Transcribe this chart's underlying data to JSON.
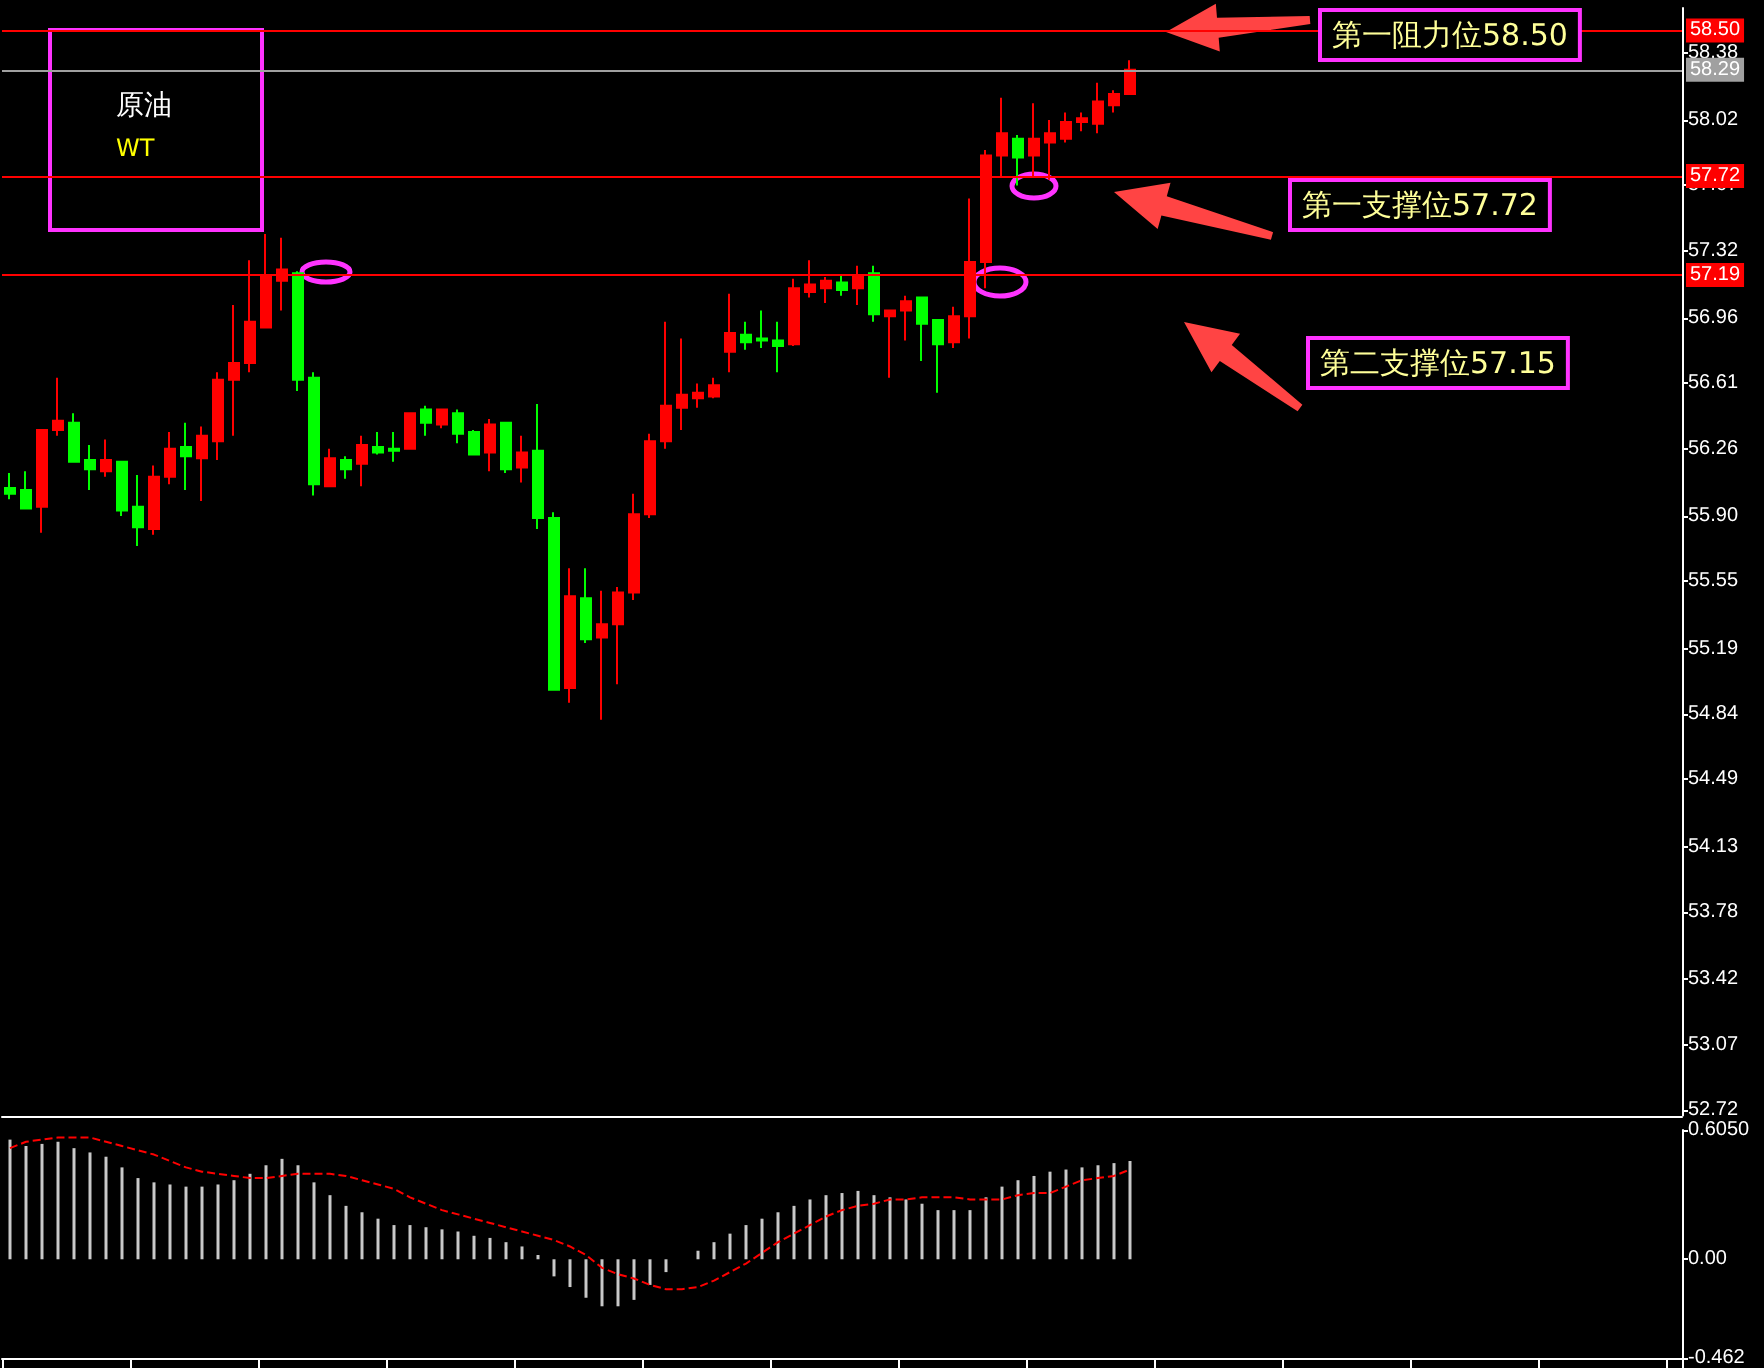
{
  "chart_data": [
    {
      "type": "candlestick",
      "categories": [
        null,
        null,
        null,
        null,
        null,
        null,
        null,
        null,
        null,
        null,
        null,
        null,
        null,
        null,
        null,
        null,
        null,
        null,
        null,
        null,
        null,
        null,
        null,
        null,
        null,
        null,
        null,
        null,
        null,
        null,
        null,
        null,
        null,
        null,
        null,
        null,
        null,
        null,
        null,
        null,
        null,
        null,
        null,
        null,
        null,
        null,
        null,
        null,
        null,
        null,
        null,
        null,
        null,
        null,
        null,
        null,
        null,
        null,
        null,
        null,
        null,
        null,
        null,
        null,
        null,
        null,
        null,
        null,
        null,
        null,
        null,
        null,
        null,
        null,
        null,
        null,
        null,
        null,
        null,
        null,
        null,
        null,
        null,
        null,
        null,
        null,
        null,
        null,
        null,
        null,
        null,
        null,
        null,
        null,
        null,
        null,
        null,
        null,
        null,
        null,
        null,
        null,
        null,
        null,
        null
      ],
      "ohlc": [
        [
          56.05,
          56.13,
          55.99,
          56.02
        ],
        [
          56.04,
          56.14,
          55.94,
          55.94
        ],
        [
          55.95,
          56.36,
          55.81,
          56.36
        ],
        [
          56.36,
          56.64,
          56.33,
          56.41
        ],
        [
          56.4,
          56.45,
          56.19,
          56.19
        ],
        [
          56.2,
          56.28,
          56.04,
          56.15
        ],
        [
          56.14,
          56.31,
          56.11,
          56.2
        ],
        [
          56.19,
          56.19,
          55.9,
          55.93
        ],
        [
          55.95,
          56.12,
          55.74,
          55.84
        ],
        [
          55.83,
          56.17,
          55.8,
          56.11
        ],
        [
          56.11,
          56.35,
          56.07,
          56.26
        ],
        [
          56.27,
          56.4,
          56.04,
          56.22
        ],
        [
          56.21,
          56.38,
          55.98,
          56.33
        ],
        [
          56.3,
          56.67,
          56.2,
          56.63
        ],
        [
          56.63,
          57.03,
          56.33,
          56.72
        ],
        [
          56.72,
          57.27,
          56.67,
          56.94
        ],
        [
          56.91,
          57.41,
          56.91,
          57.18
        ],
        [
          57.16,
          57.39,
          57.0,
          57.22
        ],
        [
          57.2,
          57.21,
          56.57,
          56.63
        ],
        [
          56.64,
          56.67,
          56.01,
          56.07
        ],
        [
          56.06,
          56.26,
          56.06,
          56.21
        ],
        [
          56.2,
          56.22,
          56.1,
          56.15
        ],
        [
          56.18,
          56.33,
          56.06,
          56.28
        ],
        [
          56.27,
          56.35,
          56.23,
          56.24
        ],
        [
          56.26,
          56.35,
          56.19,
          56.25
        ],
        [
          56.26,
          56.45,
          56.26,
          56.45
        ],
        [
          56.47,
          56.49,
          56.33,
          56.4
        ],
        [
          56.39,
          56.47,
          56.37,
          56.47
        ],
        [
          56.45,
          56.47,
          56.29,
          56.34
        ],
        [
          56.35,
          56.36,
          56.23,
          56.23
        ],
        [
          56.24,
          56.42,
          56.14,
          56.39
        ],
        [
          56.4,
          56.4,
          56.13,
          56.15
        ],
        [
          56.16,
          56.33,
          56.08,
          56.24
        ],
        [
          56.25,
          56.5,
          55.83,
          55.89
        ],
        [
          55.89,
          55.92,
          54.97,
          54.97
        ],
        [
          54.98,
          55.62,
          54.9,
          55.47
        ],
        [
          55.46,
          55.62,
          55.22,
          55.24
        ],
        [
          55.25,
          55.5,
          54.81,
          55.32
        ],
        [
          55.32,
          55.52,
          55.0,
          55.49
        ],
        [
          55.49,
          56.02,
          55.45,
          55.91
        ],
        [
          55.91,
          56.34,
          55.89,
          56.3
        ],
        [
          56.3,
          56.94,
          56.26,
          56.49
        ],
        [
          56.48,
          56.85,
          56.36,
          56.55
        ],
        [
          56.53,
          56.61,
          56.48,
          56.56
        ],
        [
          56.54,
          56.64,
          56.53,
          56.6
        ],
        [
          56.78,
          57.09,
          56.67,
          56.88
        ],
        [
          56.87,
          56.94,
          56.79,
          56.83
        ],
        [
          56.85,
          57.0,
          56.8,
          56.84
        ],
        [
          56.84,
          56.94,
          56.67,
          56.81
        ],
        [
          56.82,
          57.17,
          56.81,
          57.12
        ],
        [
          57.1,
          57.27,
          57.07,
          57.14
        ],
        [
          57.12,
          57.18,
          57.04,
          57.16
        ],
        [
          57.15,
          57.19,
          57.08,
          57.11
        ],
        [
          57.12,
          57.24,
          57.03,
          57.19
        ],
        [
          57.2,
          57.24,
          56.94,
          56.98
        ],
        [
          56.97,
          57.0,
          56.64,
          57.0
        ],
        [
          57.0,
          57.08,
          56.84,
          57.05
        ],
        [
          57.07,
          57.07,
          56.73,
          56.93
        ],
        [
          56.95,
          56.95,
          56.56,
          56.82
        ],
        [
          56.83,
          57.02,
          56.8,
          56.97
        ],
        [
          56.97,
          57.6,
          56.85,
          57.26
        ],
        [
          57.26,
          57.86,
          57.12,
          57.83
        ],
        [
          57.83,
          58.14,
          57.71,
          57.95
        ],
        [
          57.92,
          57.94,
          57.67,
          57.82
        ],
        [
          57.83,
          58.11,
          57.71,
          57.92
        ],
        [
          57.9,
          58.02,
          57.7,
          57.95
        ],
        [
          57.92,
          58.06,
          57.9,
          58.01
        ],
        [
          58.01,
          58.06,
          57.96,
          58.03
        ],
        [
          58.0,
          58.22,
          57.95,
          58.12
        ],
        [
          58.1,
          58.18,
          58.06,
          58.16
        ],
        [
          58.16,
          58.34,
          58.16,
          58.29
        ],
        null,
        null,
        null,
        null,
        null,
        null,
        null,
        null,
        null,
        null,
        null,
        null,
        null,
        null,
        null,
        null,
        null,
        null,
        null,
        null,
        null,
        null,
        null,
        null,
        null,
        null,
        null,
        null,
        null,
        null,
        null,
        null,
        null,
        null
      ],
      "colors": [
        "#00ff00",
        "#00ff00",
        "#ff0000",
        "#ff0000",
        "#00ff00",
        "#00ff00",
        "#ff0000",
        "#00ff00",
        "#00ff00",
        "#ff0000",
        "#ff0000",
        "#00ff00",
        "#ff0000",
        "#ff0000",
        "#ff0000",
        "#ff0000",
        "#ff0000",
        "#ff0000",
        "#00ff00",
        "#00ff00",
        "#ff0000",
        "#00ff00",
        "#ff0000",
        "#00ff00",
        "#00ff00",
        "#ff0000",
        "#00ff00",
        "#ff0000",
        "#00ff00",
        "#00ff00",
        "#ff0000",
        "#00ff00",
        "#ff0000",
        "#00ff00",
        "#00ff00",
        "#ff0000",
        "#00ff00",
        "#ff0000",
        "#ff0000",
        "#ff0000",
        "#ff0000",
        "#ff0000",
        "#ff0000",
        "#ff0000",
        "#ff0000",
        "#ff0000",
        "#00ff00",
        "#00ff00",
        "#00ff00",
        "#ff0000",
        "#ff0000",
        "#ff0000",
        "#00ff00",
        "#ff0000",
        "#00ff00",
        "#ff0000",
        "#ff0000",
        "#00ff00",
        "#00ff00",
        "#ff0000",
        "#ff0000",
        "#ff0000",
        "#ff0000",
        "#00ff00",
        "#ff0000",
        "#ff0000",
        "#ff0000",
        "#ff0000",
        "#ff0000",
        "#ff0000",
        "#ff0000",
        null,
        null,
        null,
        null,
        null,
        null,
        null,
        null,
        null,
        null,
        null,
        null,
        null,
        null,
        null,
        null,
        null,
        null,
        null,
        null,
        null,
        null,
        null,
        null,
        null,
        null,
        null,
        null,
        null,
        null,
        null,
        null,
        null,
        null
      ],
      "ylim": [
        52.69,
        58.62
      ],
      "yticks": [
        52.72,
        53.07,
        53.42,
        53.78,
        54.13,
        54.49,
        54.84,
        55.19,
        55.55,
        {
          "value": 55.9,
          "label": "55.90"
        },
        56.26,
        56.61,
        56.96,
        57.32,
        57.67,
        58.02,
        58.38
      ],
      "ref_lines": [
        {
          "axis": "y",
          "value": 58.5,
          "label": "58.50",
          "color": "#ff0000"
        },
        {
          "axis": "y",
          "value": 58.29,
          "label": "58.29",
          "color": "#a0a0a0"
        },
        {
          "axis": "y",
          "value": 57.72,
          "label": "57.72",
          "color": "#ff0000"
        },
        {
          "axis": "y",
          "value": 57.19,
          "label": "57.19",
          "color": "#ff0000"
        }
      ],
      "annotations": [
        "原油",
        "WT",
        "第一阻力位58.50",
        "第一支撑位57.72",
        "第二支撑位57.15"
      ],
      "grid": false,
      "tick_labels": "y"
    },
    {
      "type": "bar",
      "categories": [
        null,
        null,
        null,
        null,
        null,
        null,
        null,
        null,
        null,
        null,
        null,
        null,
        null,
        null,
        null,
        null,
        null,
        null,
        null,
        null,
        null,
        null,
        null,
        null,
        null,
        null,
        null,
        null,
        null,
        null,
        null,
        null,
        null,
        null,
        null,
        null,
        null,
        null,
        null,
        null,
        null,
        null,
        null,
        null,
        null,
        null,
        null,
        null,
        null,
        null,
        null,
        null,
        null,
        null,
        null,
        null,
        null,
        null,
        null,
        null,
        null,
        null,
        null,
        null,
        null,
        null,
        null,
        null,
        null,
        null,
        null,
        null,
        null,
        null,
        null,
        null,
        null,
        null,
        null,
        null,
        null,
        null,
        null,
        null,
        null,
        null,
        null,
        null,
        null,
        null,
        null,
        null,
        null,
        null,
        null,
        null,
        null,
        null,
        null,
        null,
        null,
        null,
        null,
        null,
        null
      ],
      "series": [
        {
          "type": "bar",
          "color": "#c8c8c8",
          "values": [
            0.56,
            0.53,
            0.54,
            0.55,
            0.52,
            0.5,
            0.48,
            0.43,
            0.38,
            0.36,
            0.35,
            0.34,
            0.34,
            0.35,
            0.37,
            0.4,
            0.44,
            0.47,
            0.44,
            0.36,
            0.3,
            0.25,
            0.22,
            0.19,
            0.16,
            0.16,
            0.15,
            0.14,
            0.13,
            0.11,
            0.1,
            0.08,
            0.06,
            0.02,
            -0.08,
            -0.13,
            -0.18,
            -0.22,
            -0.22,
            -0.19,
            -0.12,
            -0.06,
            0.0,
            0.04,
            0.08,
            0.12,
            0.16,
            0.19,
            0.22,
            0.25,
            0.28,
            0.3,
            0.31,
            0.32,
            0.3,
            0.29,
            0.28,
            0.26,
            0.23,
            0.23,
            0.23,
            0.29,
            0.34,
            0.37,
            0.39,
            0.41,
            0.42,
            0.43,
            0.44,
            0.45,
            0.46,
            null,
            null,
            null,
            null,
            null,
            null,
            null,
            null,
            null,
            null,
            null,
            null,
            null,
            null,
            null,
            null,
            null,
            null,
            null,
            null,
            null,
            null,
            null,
            null,
            null,
            null,
            null,
            null,
            null,
            null,
            null,
            null,
            null,
            null
          ]
        },
        {
          "type": "line",
          "color": "#ff0000",
          "line_style": "dashed",
          "values": [
            0.52,
            0.55,
            0.56,
            0.57,
            0.57,
            0.57,
            0.55,
            0.53,
            0.51,
            0.49,
            0.46,
            0.43,
            0.41,
            0.4,
            0.39,
            0.38,
            0.38,
            0.39,
            0.4,
            0.4,
            0.4,
            0.39,
            0.37,
            0.35,
            0.33,
            0.29,
            0.26,
            0.23,
            0.21,
            0.19,
            0.17,
            0.15,
            0.13,
            0.11,
            0.09,
            0.06,
            0.02,
            -0.04,
            -0.07,
            -0.09,
            -0.12,
            -0.14,
            -0.14,
            -0.13,
            -0.1,
            -0.06,
            -0.02,
            0.03,
            0.08,
            0.12,
            0.16,
            0.2,
            0.23,
            0.25,
            0.26,
            0.28,
            0.28,
            0.29,
            0.29,
            0.29,
            0.28,
            0.28,
            0.28,
            0.3,
            0.31,
            0.31,
            0.34,
            0.37,
            0.38,
            0.39,
            0.42,
            null,
            null,
            null,
            null,
            null,
            null,
            null,
            null,
            null,
            null,
            null,
            null,
            null,
            null,
            null,
            null,
            null,
            null,
            null,
            null,
            null,
            null,
            null,
            null,
            null,
            null,
            null,
            null,
            null,
            null,
            null,
            null,
            null,
            null
          ]
        }
      ],
      "ylim": [
        -0.462,
        0.605
      ],
      "yticks": [
        -0.462,
        {
          "value": 0,
          "label": "0.00"
        },
        {
          "value": 0.605,
          "label": "0.6050"
        }
      ],
      "marker": "none",
      "grid": false,
      "tick_labels": "y"
    }
  ]
}
